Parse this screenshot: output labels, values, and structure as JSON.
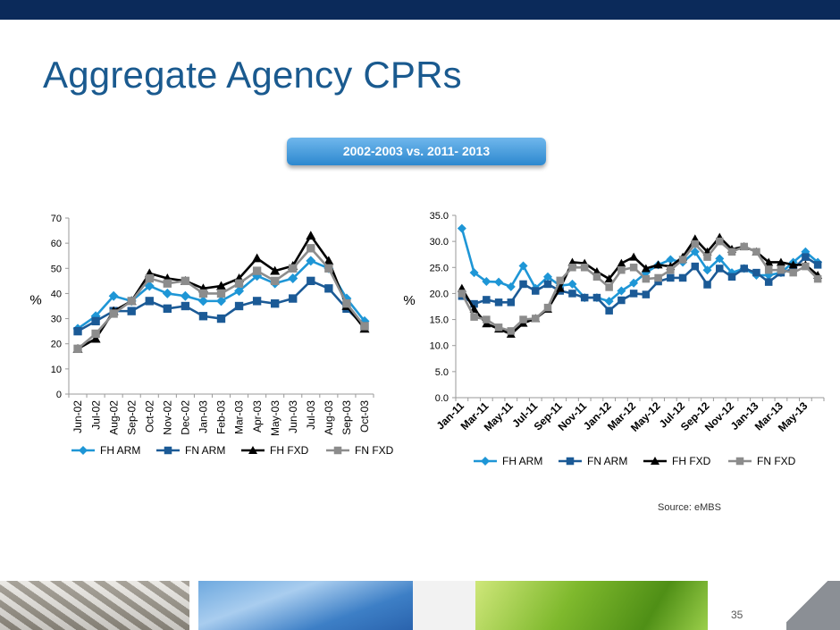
{
  "slide": {
    "title": "Aggregate Agency CPRs",
    "subtitle_pill": "2002-2003 vs. 2011- 2013",
    "source": "Source: eMBS",
    "page_number": "35"
  },
  "colors": {
    "title": "#1a5a8f",
    "top_bar": "#0b2a5a",
    "FH ARM": "#1e96d6",
    "FN ARM": "#1b5a96",
    "FH FXD": "#000000",
    "FN FXD": "#8c8c8c"
  },
  "chart_data": [
    {
      "type": "line",
      "title": "",
      "xlabel": "",
      "ylabel": "%",
      "ylim": [
        0,
        70
      ],
      "yticks": [
        0,
        10,
        20,
        30,
        40,
        50,
        60,
        70
      ],
      "ytick_labels": [
        "0",
        "10",
        "20",
        "30",
        "40",
        "50",
        "60",
        "70"
      ],
      "grid": false,
      "legend": "bottom",
      "categories": [
        "Jun-02",
        "Jul-02",
        "Aug-02",
        "Sep-02",
        "Oct-02",
        "Nov-02",
        "Dec-02",
        "Jan-03",
        "Feb-03",
        "Mar-03",
        "Apr-03",
        "May-03",
        "Jun-03",
        "Jul-03",
        "Aug-03",
        "Sep-03",
        "Oct-03"
      ],
      "tick_labels": [
        "Jun-02",
        "Jul-02",
        "Aug-02",
        "Sep-02",
        "Oct-02",
        "Nov-02",
        "Dec-02",
        "Jan-03",
        "Feb-03",
        "Mar-03",
        "Apr-03",
        "May-03",
        "Jun-03",
        "Jul-03",
        "Aug-03",
        "Sep-03",
        "Oct-03"
      ],
      "series": [
        {
          "name": "FH ARM",
          "values": [
            26,
            31,
            39,
            37,
            43,
            40,
            39,
            37,
            37,
            41,
            47,
            44,
            46,
            53,
            50,
            38,
            29
          ]
        },
        {
          "name": "FN ARM",
          "values": [
            25,
            29,
            33,
            33,
            37,
            34,
            35,
            31,
            30,
            35,
            37,
            36,
            38,
            45,
            42,
            34,
            27
          ]
        },
        {
          "name": "FH FXD",
          "values": [
            18,
            22,
            33,
            37,
            48,
            46,
            45,
            42,
            43,
            46,
            54,
            49,
            51,
            63,
            53,
            35,
            26
          ]
        },
        {
          "name": "FN FXD",
          "values": [
            18,
            24,
            32,
            37,
            46,
            44,
            45,
            40,
            40,
            44,
            49,
            45,
            50,
            58,
            50,
            36,
            27
          ]
        }
      ]
    },
    {
      "type": "line",
      "title": "",
      "xlabel": "",
      "ylabel": "%",
      "ylim": [
        0,
        35
      ],
      "yticks": [
        0,
        5,
        10,
        15,
        20,
        25,
        30,
        35
      ],
      "ytick_labels": [
        "0.0",
        "5.0",
        "10.0",
        "15.0",
        "20.0",
        "25.0",
        "30.0",
        "35.0"
      ],
      "grid": false,
      "legend": "bottom",
      "categories": [
        "Jan-11",
        "Feb-11",
        "Mar-11",
        "Apr-11",
        "May-11",
        "Jun-11",
        "Jul-11",
        "Aug-11",
        "Sep-11",
        "Oct-11",
        "Nov-11",
        "Dec-11",
        "Jan-12",
        "Feb-12",
        "Mar-12",
        "Apr-12",
        "May-12",
        "Jun-12",
        "Jul-12",
        "Aug-12",
        "Sep-12",
        "Oct-12",
        "Nov-12",
        "Dec-12",
        "Jan-13",
        "Feb-13",
        "Mar-13",
        "Apr-13",
        "May-13",
        "Jun-13"
      ],
      "tick_labels": [
        "Jan-11",
        "Mar-11",
        "May-11",
        "Jul-11",
        "Sep-11",
        "Nov-11",
        "Jan-12",
        "Mar-12",
        "May-12",
        "Jul-12",
        "Sep-12",
        "Nov-12",
        "Jan-13",
        "Mar-13",
        "May-13"
      ],
      "series": [
        {
          "name": "FH ARM",
          "values": [
            32.5,
            24.0,
            22.3,
            22.2,
            21.3,
            25.3,
            21.0,
            23.2,
            21.5,
            21.8,
            19.2,
            19.2,
            18.5,
            20.5,
            22.0,
            24.0,
            25.5,
            26.5,
            26.0,
            28.0,
            24.5,
            26.7,
            24.0,
            24.8,
            23.5,
            23.5,
            24.0,
            26.0,
            28.0,
            26.0
          ]
        },
        {
          "name": "FN ARM",
          "values": [
            19.5,
            18.0,
            18.8,
            18.3,
            18.3,
            21.8,
            20.5,
            21.8,
            20.5,
            20.0,
            19.2,
            19.2,
            16.7,
            18.7,
            20.0,
            19.8,
            22.3,
            23.0,
            23.0,
            25.2,
            21.7,
            24.8,
            23.2,
            24.8,
            24.0,
            22.2,
            24.0,
            24.7,
            27.0,
            25.5
          ]
        },
        {
          "name": "FH FXD",
          "values": [
            21.0,
            17.0,
            14.2,
            13.2,
            12.2,
            14.3,
            15.2,
            17.0,
            21.0,
            26.0,
            25.8,
            24.2,
            22.8,
            25.8,
            27.0,
            24.8,
            25.5,
            25.2,
            27.0,
            30.5,
            28.0,
            30.8,
            28.5,
            29.0,
            28.0,
            26.0,
            26.0,
            25.5,
            25.5,
            23.5
          ]
        },
        {
          "name": "FN FXD",
          "values": [
            20.0,
            15.5,
            15.0,
            13.5,
            12.8,
            15.0,
            15.2,
            17.3,
            22.5,
            25.0,
            25.0,
            23.2,
            21.2,
            24.5,
            25.0,
            22.8,
            23.0,
            24.5,
            26.5,
            29.5,
            27.0,
            30.0,
            28.0,
            29.0,
            28.0,
            24.5,
            24.5,
            24.0,
            25.2,
            22.8
          ]
        }
      ]
    }
  ]
}
